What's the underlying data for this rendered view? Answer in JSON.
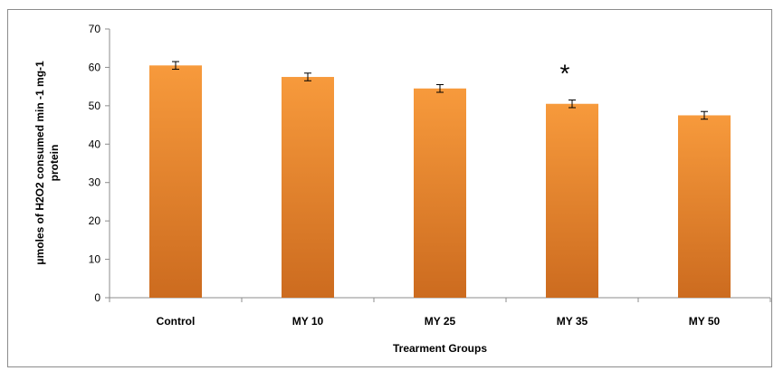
{
  "chart_data": {
    "type": "bar",
    "categories": [
      "Control",
      "MY 10",
      "MY 25",
      "MY 35",
      "MY 50"
    ],
    "values": [
      60.5,
      57.5,
      54.5,
      50.5,
      47.5
    ],
    "errors": [
      1.0,
      1.0,
      1.0,
      1.0,
      1.0
    ],
    "xlabel": "Trearment Groups",
    "ylabel_lines": [
      "μmoles of H2O2 consumed  min -1 mg-1",
      "protein"
    ],
    "ylim": [
      0,
      70
    ],
    "yticks": [
      0,
      10,
      20,
      30,
      40,
      50,
      60,
      70
    ],
    "annotations": [
      {
        "category": "MY 35",
        "text": "*"
      }
    ],
    "colors": {
      "bar_top": "#f79a3c",
      "bar_bottom": "#cc6b1f",
      "axis": "#8c8c8c",
      "error_bar": "#000000"
    },
    "grid": false,
    "legend": "none"
  }
}
